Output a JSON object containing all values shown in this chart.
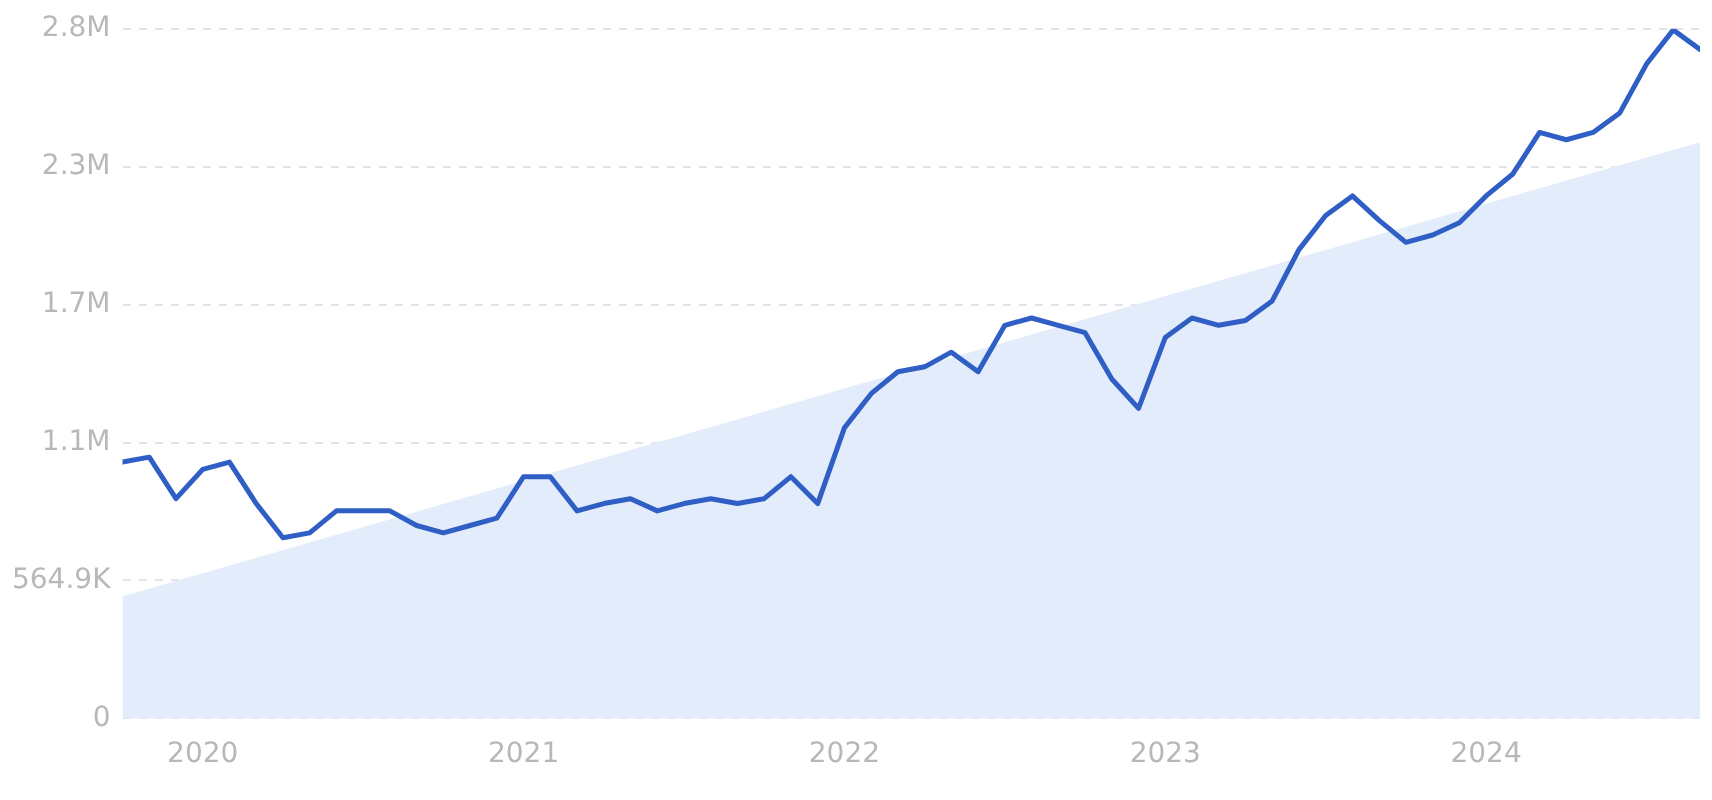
{
  "chart_data": {
    "type": "line",
    "series": [
      {
        "type": "area",
        "color": "#e2ecfa",
        "x": [
          "2019-10",
          "2024-09"
        ],
        "values": [
          500000,
          2360000
        ]
      },
      {
        "type": "line",
        "color": "#2f5ec4",
        "x": [
          "2019-10",
          "2019-11",
          "2019-12",
          "2020-01",
          "2020-02",
          "2020-03",
          "2020-04",
          "2020-05",
          "2020-06",
          "2020-07",
          "2020-08",
          "2020-09",
          "2020-10",
          "2020-11",
          "2020-12",
          "2021-01",
          "2021-02",
          "2021-03",
          "2021-04",
          "2021-05",
          "2021-06",
          "2021-07",
          "2021-08",
          "2021-09",
          "2021-10",
          "2021-11",
          "2021-12",
          "2022-01",
          "2022-02",
          "2022-03",
          "2022-04",
          "2022-05",
          "2022-06",
          "2022-07",
          "2022-08",
          "2022-09",
          "2022-10",
          "2022-11",
          "2022-12",
          "2023-01",
          "2023-02",
          "2023-03",
          "2023-04",
          "2023-05",
          "2023-06",
          "2023-07",
          "2023-08",
          "2023-09",
          "2023-10",
          "2023-11",
          "2023-12",
          "2024-01",
          "2024-02",
          "2024-03",
          "2024-04",
          "2024-05",
          "2024-06",
          "2024-07",
          "2024-08",
          "2024-09"
        ],
        "values": [
          1050000,
          1070000,
          900000,
          1020000,
          1050000,
          880000,
          740000,
          760000,
          850000,
          850000,
          850000,
          790000,
          760000,
          790000,
          820000,
          990000,
          990000,
          850000,
          880000,
          900000,
          850000,
          880000,
          900000,
          880000,
          900000,
          990000,
          880000,
          1190000,
          1330000,
          1420000,
          1440000,
          1500000,
          1420000,
          1610000,
          1640000,
          1610000,
          1580000,
          1390000,
          1270000,
          1560000,
          1640000,
          1610000,
          1630000,
          1710000,
          1920000,
          2060000,
          2140000,
          2040000,
          1950000,
          1980000,
          2030000,
          2140000,
          2230000,
          2400000,
          2370000,
          2400000,
          2480000,
          2680000,
          2820000,
          2740000
        ]
      }
    ],
    "xlim": [
      "2019-10",
      "2024-09"
    ],
    "xticks": [
      "2020",
      "2021",
      "2022",
      "2023",
      "2024"
    ],
    "ylim": [
      0,
      2824500
    ],
    "yticks": [
      0,
      {
        "value": 564900,
        "label": "564.9K"
      },
      {
        "value": 1129800,
        "label": "1.1M"
      },
      {
        "value": 1694700,
        "label": "1.7M"
      },
      {
        "value": 2259600,
        "label": "2.3M"
      },
      {
        "value": 2824500,
        "label": "2.8M"
      }
    ],
    "grid": "y",
    "legend": false,
    "marker": "none"
  }
}
